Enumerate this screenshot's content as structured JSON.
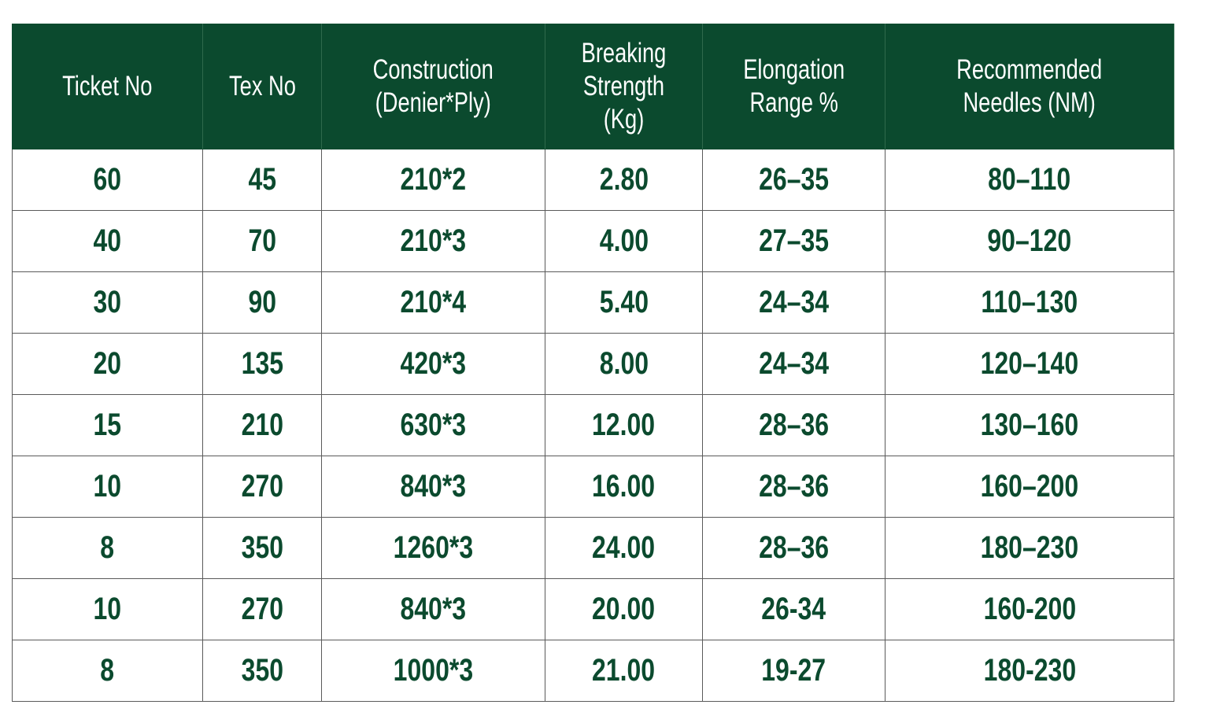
{
  "table": {
    "headers": [
      "Ticket No",
      "Tex No",
      "Construction\n(Denier*Ply)",
      "Breaking\nStrength (Kg)",
      "Elongation\nRange %",
      "Recommended\nNeedles (NM)"
    ],
    "rows": [
      [
        "60",
        "45",
        "210*2",
        "2.80",
        "26–35",
        "80–110"
      ],
      [
        "40",
        "70",
        "210*3",
        "4.00",
        "27–35",
        "90–120"
      ],
      [
        "30",
        "90",
        "210*4",
        "5.40",
        "24–34",
        "110–130"
      ],
      [
        "20",
        "135",
        "420*3",
        "8.00",
        "24–34",
        "120–140"
      ],
      [
        "15",
        "210",
        "630*3",
        "12.00",
        "28–36",
        "130–160"
      ],
      [
        "10",
        "270",
        "840*3",
        "16.00",
        "28–36",
        "160–200"
      ],
      [
        "8",
        "350",
        "1260*3",
        "24.00",
        "28–36",
        "180–230"
      ],
      [
        "10",
        "270",
        "840*3",
        "20.00",
        "26-34",
        "160-200"
      ],
      [
        "8",
        "350",
        "1000*3",
        "21.00",
        "19-27",
        "180-230"
      ]
    ]
  }
}
